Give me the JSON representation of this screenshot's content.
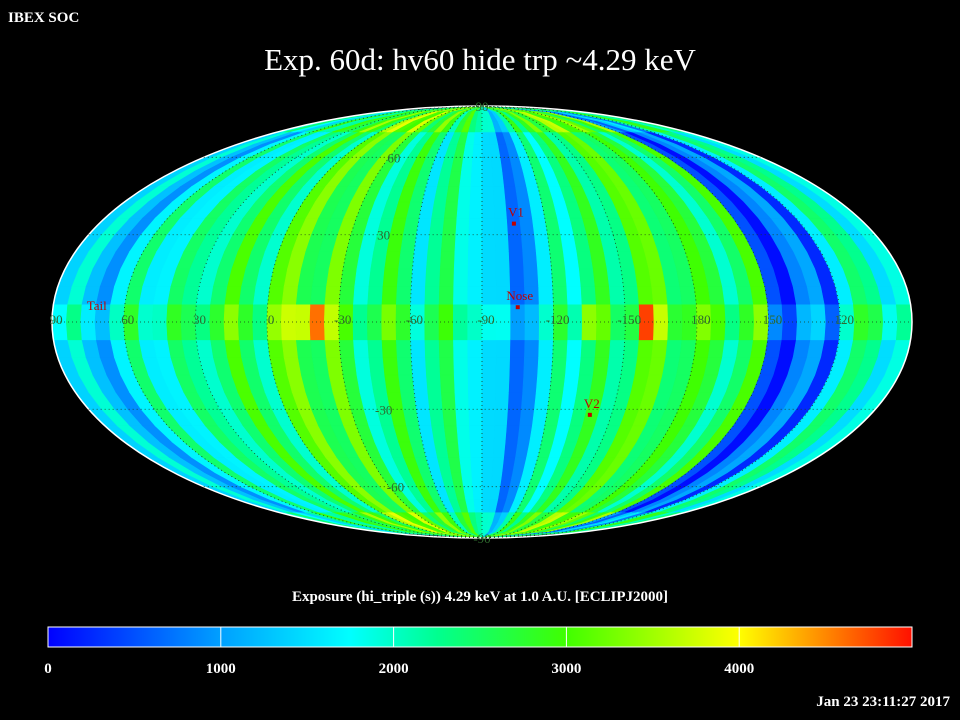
{
  "header": {
    "corner_label": "IBEX SOC"
  },
  "timestamp": "Jan 23 23:11:27 2017",
  "chart_data": {
    "type": "heatmap",
    "title": "Exp.   60d: hv60 hide trp ~4.29 keV",
    "projection": "Mollweide all-sky map, ecliptic coordinates",
    "colorbar": {
      "title": "Exposure (hi_triple (s))  4.29 keV at 1.0 A.U. [ECLIPJ2000]",
      "range": [
        0,
        5000
      ],
      "ticks": [
        "0",
        "1000",
        "2000",
        "3000",
        "4000"
      ],
      "colormap": [
        "#0000ff",
        "#00ffff",
        "#00ff00",
        "#ffff00",
        "#ff0000"
      ]
    },
    "grid": true,
    "latitude_labels": [
      {
        "label": "90",
        "lat": 90,
        "lon": -95
      },
      {
        "label": "60",
        "lat": 60,
        "lon": -33
      },
      {
        "label": "30",
        "lat": 30,
        "lon": -45
      },
      {
        "label": "-30",
        "lat": -30,
        "lon": -45
      },
      {
        "label": "-60",
        "lat": -60,
        "lon": -34
      },
      {
        "label": "-90",
        "lat": -90,
        "lon": -95
      }
    ],
    "longitude_labels": [
      "60",
      "30",
      "0",
      "-30",
      "-60",
      "-90",
      "-120",
      "-150",
      "180",
      "150",
      "120",
      "90"
    ],
    "longitude_label_lons": [
      60,
      30,
      0,
      -30,
      -60,
      -90,
      -120,
      -150,
      180,
      150,
      120,
      90
    ],
    "markers": [
      {
        "label": "V1",
        "lat": 34,
        "lon": -105
      },
      {
        "label": "Nose",
        "lat": 5,
        "lon": -105
      },
      {
        "label": "V2",
        "lat": -32,
        "lon": -140
      },
      {
        "label": "Tail",
        "lat": 5,
        "lon": 75
      }
    ],
    "exposure_by_longitude_strip_s": [
      {
        "lon_from": 90,
        "lon_to": 60,
        "value": 1400
      },
      {
        "lon_from": 60,
        "lon_to": 30,
        "value": 2000
      },
      {
        "lon_from": 30,
        "lon_to": 0,
        "value": 2500
      },
      {
        "lon_from": 0,
        "lon_to": -30,
        "value": 2900
      },
      {
        "lon_from": -30,
        "lon_to": -60,
        "value": 2400
      },
      {
        "lon_from": -60,
        "lon_to": -90,
        "value": 2100
      },
      {
        "lon_from": -90,
        "lon_to": -120,
        "value": 1100
      },
      {
        "lon_from": -120,
        "lon_to": -150,
        "value": 2300
      },
      {
        "lon_from": -150,
        "lon_to": 180,
        "value": 2800
      },
      {
        "lon_from": 180,
        "lon_to": 150,
        "value": 2500
      },
      {
        "lon_from": 150,
        "lon_to": 120,
        "value": 600
      },
      {
        "lon_from": 120,
        "lon_to": 90,
        "value": 300
      }
    ],
    "ecliptic_band_peaks_s": [
      {
        "lon": -15,
        "value": 3700
      },
      {
        "lon": -22,
        "value": 4600
      },
      {
        "lon": -135,
        "value": 3400
      },
      {
        "lon": -158,
        "value": 4800
      },
      {
        "lon": -165,
        "value": 3700
      }
    ]
  }
}
